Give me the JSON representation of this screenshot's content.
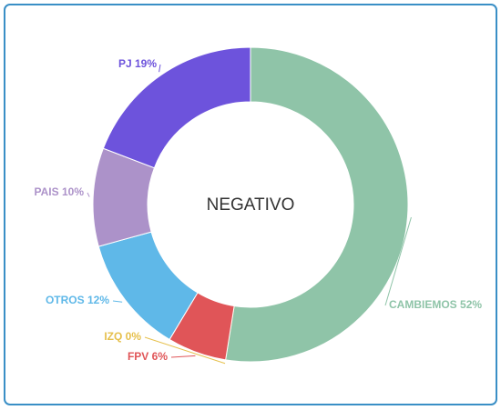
{
  "chart_data": {
    "type": "donut",
    "title": "NEGATIVO",
    "categories": [
      "CAMBIEMOS",
      "IZQ",
      "FPV",
      "OTROS",
      "PAIS",
      "PJ"
    ],
    "values": [
      52,
      0,
      6,
      12,
      10,
      19
    ],
    "value_labels": [
      "52%",
      "0%",
      "6%",
      "12%",
      "10%",
      "19%"
    ],
    "colors": [
      "#8fc4a8",
      "#e6c04c",
      "#e05558",
      "#5fb8e8",
      "#ac92c9",
      "#6d53dc"
    ]
  }
}
